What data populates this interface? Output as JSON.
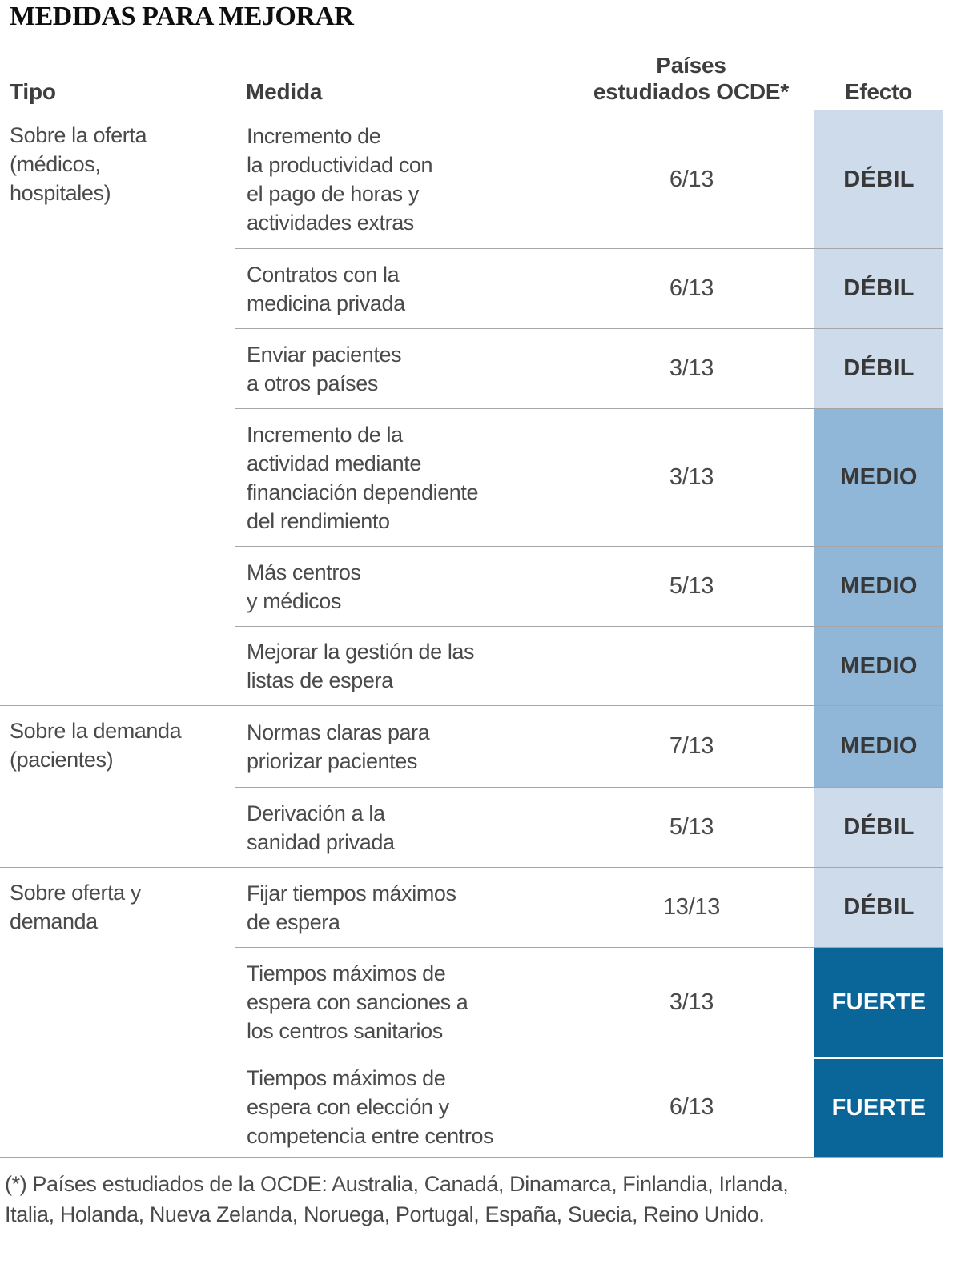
{
  "title": "MEDIDAS PARA MEJORAR",
  "headers": {
    "tipo": "Tipo",
    "medida": "Medida",
    "paises_line1": "Países",
    "paises_line2": "estudiados OCDE*",
    "efecto": "Efecto"
  },
  "groups": [
    {
      "label": "Sobre la oferta\n(médicos,\nhospitales)"
    },
    {
      "label": "Sobre la demanda\n(pacientes)"
    },
    {
      "label": "Sobre oferta y\ndemanda"
    }
  ],
  "rows": [
    {
      "medida": "Incremento de\nla productividad con\nel pago de horas y\nactividades extras",
      "paises": "6/13",
      "efecto": "DÉBIL",
      "level": "debil"
    },
    {
      "medida": "Contratos con la\nmedicina privada",
      "paises": "6/13",
      "efecto": "DÉBIL",
      "level": "debil"
    },
    {
      "medida": "Enviar pacientes\na otros países",
      "paises": "3/13",
      "efecto": "DÉBIL",
      "level": "debil"
    },
    {
      "medida": "Incremento de la\nactividad mediante\nfinanciación dependiente\ndel rendimiento",
      "paises": "3/13",
      "efecto": "MEDIO",
      "level": "medio"
    },
    {
      "medida": "Más centros\ny médicos",
      "paises": "5/13",
      "efecto": "MEDIO",
      "level": "medio"
    },
    {
      "medida": "Mejorar la gestión de las\nlistas de espera",
      "paises": "",
      "efecto": "MEDIO",
      "level": "medio"
    },
    {
      "medida": "Normas claras para\npriorizar pacientes",
      "paises": "7/13",
      "efecto": "MEDIO",
      "level": "medio"
    },
    {
      "medida": "Derivación a la\nsanidad privada",
      "paises": "5/13",
      "efecto": "DÉBIL",
      "level": "debil"
    },
    {
      "medida": "Fijar tiempos máximos\nde espera",
      "paises": "13/13",
      "efecto": "DÉBIL",
      "level": "debil"
    },
    {
      "medida": "Tiempos máximos de\nespera con sanciones a\nlos centros sanitarios",
      "paises": "3/13",
      "efecto": "FUERTE",
      "level": "fuerte"
    },
    {
      "medida": "Tiempos máximos de\nespera con elección y\ncompetencia entre centros",
      "paises": "6/13",
      "efecto": "FUERTE",
      "level": "fuerte"
    }
  ],
  "footnote": "(*) Países estudiados de la OCDE: Australia, Canadá, Dinamarca, Finlandia, Irlanda,\nItalia, Holanda, Nueva Zelanda, Noruega, Portugal, España, Suecia, Reino Unido.",
  "colors": {
    "efecto_debil": "#cddbea",
    "efecto_medio": "#90b7d8",
    "efecto_fuerte": "#0a6598",
    "line_gray": "#a6a6a6",
    "text_gray": "#4a4a4a"
  },
  "chart_data": {
    "type": "table",
    "title": "MEDIDAS PARA MEJORAR",
    "columns": [
      "Tipo",
      "Medida",
      "Países estudiados OCDE*",
      "Efecto"
    ],
    "rows": [
      [
        "Sobre la oferta (médicos, hospitales)",
        "Incremento de la productividad con el pago de horas y actividades extras",
        "6/13",
        "DÉBIL"
      ],
      [
        "Sobre la oferta (médicos, hospitales)",
        "Contratos con la medicina privada",
        "6/13",
        "DÉBIL"
      ],
      [
        "Sobre la oferta (médicos, hospitales)",
        "Enviar pacientes a otros países",
        "3/13",
        "DÉBIL"
      ],
      [
        "Sobre la oferta (médicos, hospitales)",
        "Incremento de la actividad mediante financiación dependiente del rendimiento",
        "3/13",
        "MEDIO"
      ],
      [
        "Sobre la oferta (médicos, hospitales)",
        "Más centros y médicos",
        "5/13",
        "MEDIO"
      ],
      [
        "Sobre la oferta (médicos, hospitales)",
        "Mejorar la gestión de las listas de espera",
        "",
        "MEDIO"
      ],
      [
        "Sobre la demanda (pacientes)",
        "Normas claras para priorizar pacientes",
        "7/13",
        "MEDIO"
      ],
      [
        "Sobre la demanda (pacientes)",
        "Derivación a la sanidad privada",
        "5/13",
        "DÉBIL"
      ],
      [
        "Sobre oferta y demanda",
        "Fijar tiempos máximos de espera",
        "13/13",
        "DÉBIL"
      ],
      [
        "Sobre oferta y demanda",
        "Tiempos máximos de espera con sanciones a los centros sanitarios",
        "3/13",
        "FUERTE"
      ],
      [
        "Sobre oferta y demanda",
        "Tiempos máximos de espera con elección y competencia entre centros",
        "6/13",
        "FUERTE"
      ]
    ],
    "footnote": "(*) Países estudiados de la OCDE: Australia, Canadá, Dinamarca, Finlandia, Irlanda, Italia, Holanda, Nueva Zelanda, Noruega, Portugal, España, Suecia, Reino Unido."
  }
}
